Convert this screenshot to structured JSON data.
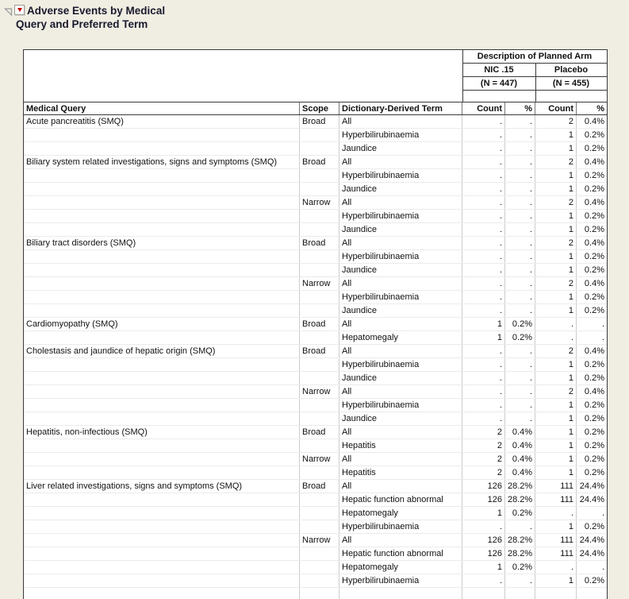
{
  "title": {
    "line1": "Adverse Events by Medical",
    "line2": "Query and Preferred Term"
  },
  "table": {
    "span_header": "Description of Planned Arm",
    "arm1": {
      "name": "NIC .15",
      "n": "(N = 447)"
    },
    "arm2": {
      "name": "Placebo",
      "n": "(N = 455)"
    },
    "columns": {
      "medical_query": "Medical Query",
      "scope": "Scope",
      "term": "Dictionary-Derived Term",
      "count": "Count",
      "pct": "%"
    },
    "rows": [
      [
        "Acute pancreatitis (SMQ)",
        "Broad",
        "All",
        ".",
        ".",
        "2",
        "0.4%"
      ],
      [
        "",
        "",
        "Hyperbilirubinaemia",
        ".",
        ".",
        "1",
        "0.2%"
      ],
      [
        "",
        "",
        "Jaundice",
        ".",
        ".",
        "1",
        "0.2%"
      ],
      [
        "Biliary system related investigations, signs and symptoms (SMQ)",
        "Broad",
        "All",
        ".",
        ".",
        "2",
        "0.4%"
      ],
      [
        "",
        "",
        "Hyperbilirubinaemia",
        ".",
        ".",
        "1",
        "0.2%"
      ],
      [
        "",
        "",
        "Jaundice",
        ".",
        ".",
        "1",
        "0.2%"
      ],
      [
        "",
        "Narrow",
        "All",
        ".",
        ".",
        "2",
        "0.4%"
      ],
      [
        "",
        "",
        "Hyperbilirubinaemia",
        ".",
        ".",
        "1",
        "0.2%"
      ],
      [
        "",
        "",
        "Jaundice",
        ".",
        ".",
        "1",
        "0.2%"
      ],
      [
        "Biliary tract disorders (SMQ)",
        "Broad",
        "All",
        ".",
        ".",
        "2",
        "0.4%"
      ],
      [
        "",
        "",
        "Hyperbilirubinaemia",
        ".",
        ".",
        "1",
        "0.2%"
      ],
      [
        "",
        "",
        "Jaundice",
        ".",
        ".",
        "1",
        "0.2%"
      ],
      [
        "",
        "Narrow",
        "All",
        ".",
        ".",
        "2",
        "0.4%"
      ],
      [
        "",
        "",
        "Hyperbilirubinaemia",
        ".",
        ".",
        "1",
        "0.2%"
      ],
      [
        "",
        "",
        "Jaundice",
        ".",
        ".",
        "1",
        "0.2%"
      ],
      [
        "Cardiomyopathy (SMQ)",
        "Broad",
        "All",
        "1",
        "0.2%",
        ".",
        "."
      ],
      [
        "",
        "",
        "Hepatomegaly",
        "1",
        "0.2%",
        ".",
        "."
      ],
      [
        "Cholestasis and jaundice of hepatic origin (SMQ)",
        "Broad",
        "All",
        ".",
        ".",
        "2",
        "0.4%"
      ],
      [
        "",
        "",
        "Hyperbilirubinaemia",
        ".",
        ".",
        "1",
        "0.2%"
      ],
      [
        "",
        "",
        "Jaundice",
        ".",
        ".",
        "1",
        "0.2%"
      ],
      [
        "",
        "Narrow",
        "All",
        ".",
        ".",
        "2",
        "0.4%"
      ],
      [
        "",
        "",
        "Hyperbilirubinaemia",
        ".",
        ".",
        "1",
        "0.2%"
      ],
      [
        "",
        "",
        "Jaundice",
        ".",
        ".",
        "1",
        "0.2%"
      ],
      [
        "Hepatitis, non-infectious (SMQ)",
        "Broad",
        "All",
        "2",
        "0.4%",
        "1",
        "0.2%"
      ],
      [
        "",
        "",
        "Hepatitis",
        "2",
        "0.4%",
        "1",
        "0.2%"
      ],
      [
        "",
        "Narrow",
        "All",
        "2",
        "0.4%",
        "1",
        "0.2%"
      ],
      [
        "",
        "",
        "Hepatitis",
        "2",
        "0.4%",
        "1",
        "0.2%"
      ],
      [
        "Liver related investigations, signs and symptoms (SMQ)",
        "Broad",
        "All",
        "126",
        "28.2%",
        "111",
        "24.4%"
      ],
      [
        "",
        "",
        "Hepatic function abnormal",
        "126",
        "28.2%",
        "111",
        "24.4%"
      ],
      [
        "",
        "",
        "Hepatomegaly",
        "1",
        "0.2%",
        ".",
        "."
      ],
      [
        "",
        "",
        "Hyperbilirubinaemia",
        ".",
        ".",
        "1",
        "0.2%"
      ],
      [
        "",
        "Narrow",
        "All",
        "126",
        "28.2%",
        "111",
        "24.4%"
      ],
      [
        "",
        "",
        "Hepatic function abnormal",
        "126",
        "28.2%",
        "111",
        "24.4%"
      ],
      [
        "",
        "",
        "Hepatomegaly",
        "1",
        "0.2%",
        ".",
        "."
      ],
      [
        "",
        "",
        "Hyperbilirubinaemia",
        ".",
        ".",
        "1",
        "0.2%"
      ]
    ]
  },
  "colors": {
    "page_bg": "#f0ede2",
    "red_triangle": "#c40000"
  }
}
